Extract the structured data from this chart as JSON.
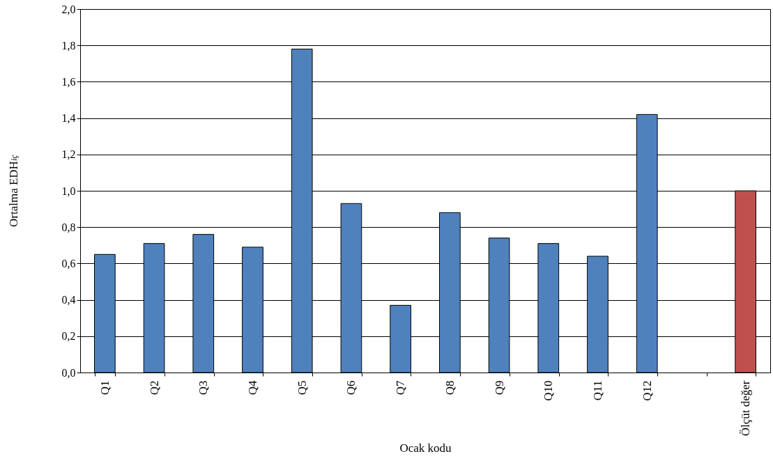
{
  "chart_data": {
    "type": "bar",
    "xlabel": "Ocak kodu",
    "ylabel": "Ortalma EDH$_{iç}$",
    "categories": [
      "Q1",
      "Q2",
      "Q3",
      "Q4",
      "Q5",
      "Q6",
      "Q7",
      "Q8",
      "Q9",
      "Q10",
      "Q11",
      "Q12",
      null,
      "Ölçüt değer"
    ],
    "values": [
      0.65,
      0.71,
      0.76,
      0.69,
      1.78,
      0.93,
      0.37,
      0.88,
      0.74,
      0.71,
      0.64,
      1.42,
      null,
      1.0
    ],
    "colors": [
      "#4f81bd",
      "#4f81bd",
      "#4f81bd",
      "#4f81bd",
      "#4f81bd",
      "#4f81bd",
      "#4f81bd",
      "#4f81bd",
      "#4f81bd",
      "#4f81bd",
      "#4f81bd",
      "#4f81bd",
      null,
      "#c0504d"
    ],
    "ylim": [
      0,
      2
    ],
    "yticks": [
      {
        "value": 0,
        "label": "0,0"
      },
      {
        "value": 0.2,
        "label": "0,2"
      },
      {
        "value": 0.4,
        "label": "0,4"
      },
      {
        "value": 0.6,
        "label": "0,6"
      },
      {
        "value": 0.8,
        "label": "0,8"
      },
      {
        "value": 1,
        "label": "1,0"
      },
      {
        "value": 1.2,
        "label": "1,2"
      },
      {
        "value": 1.4,
        "label": "1,4"
      },
      {
        "value": 1.6,
        "label": "1,6"
      },
      {
        "value": 1.8,
        "label": "1,8"
      },
      {
        "value": 2,
        "label": "2,0"
      }
    ],
    "grid": "y"
  }
}
